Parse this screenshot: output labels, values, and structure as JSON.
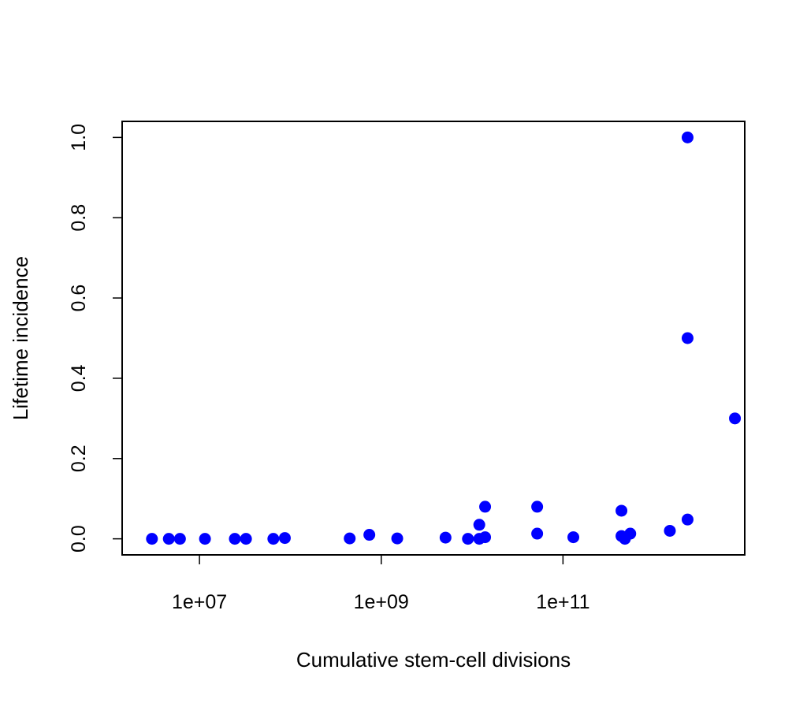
{
  "chart_data": {
    "type": "scatter",
    "title": "",
    "xlabel": "Cumulative stem-cell divisions",
    "ylabel": "Lifetime incidence",
    "x_scale": "log10",
    "xlim": [
      1410000.0,
      10000000000000.0
    ],
    "ylim": [
      -0.04,
      1.04
    ],
    "x_ticks": [
      10000000.0,
      1000000000.0,
      100000000000.0
    ],
    "x_tick_labels": [
      "1e+07",
      "1e+09",
      "1e+11"
    ],
    "y_ticks": [
      0,
      0.2,
      0.4,
      0.6,
      0.8,
      1.0
    ],
    "y_tick_labels": [
      "0.0",
      "0.2",
      "0.4",
      "0.6",
      "0.8",
      "1.0"
    ],
    "grid": false,
    "point_color": "#0000ff",
    "series": [
      {
        "points": [
          {
            "x": 3000000.0,
            "y": 0.0
          },
          {
            "x": 4600000.0,
            "y": 0.0
          },
          {
            "x": 6100000.0,
            "y": 0.0
          },
          {
            "x": 11500000.0,
            "y": 0.0
          },
          {
            "x": 24500000.0,
            "y": 0.0
          },
          {
            "x": 32500000.0,
            "y": 0.0
          },
          {
            "x": 65000000.0,
            "y": 0.0
          },
          {
            "x": 87000000.0,
            "y": 0.002
          },
          {
            "x": 450000000.0,
            "y": 0.001
          },
          {
            "x": 740000000.0,
            "y": 0.01
          },
          {
            "x": 1500000000.0,
            "y": 0.001
          },
          {
            "x": 5100000000.0,
            "y": 0.003
          },
          {
            "x": 9000000000.0,
            "y": 0.0
          },
          {
            "x": 12000000000.0,
            "y": 0.035
          },
          {
            "x": 12000000000.0,
            "y": 0.0
          },
          {
            "x": 13900000000.0,
            "y": 0.08
          },
          {
            "x": 13900000000.0,
            "y": 0.004
          },
          {
            "x": 52000000000.0,
            "y": 0.08
          },
          {
            "x": 52000000000.0,
            "y": 0.013
          },
          {
            "x": 130000000000.0,
            "y": 0.004
          },
          {
            "x": 440000000000.0,
            "y": 0.07
          },
          {
            "x": 440000000000.0,
            "y": 0.007
          },
          {
            "x": 480000000000.0,
            "y": 0.0
          },
          {
            "x": 550000000000.0,
            "y": 0.013
          },
          {
            "x": 1500000000000.0,
            "y": 0.02
          },
          {
            "x": 2350000000000.0,
            "y": 1.0
          },
          {
            "x": 2350000000000.0,
            "y": 0.5
          },
          {
            "x": 2350000000000.0,
            "y": 0.048
          },
          {
            "x": 7800000000000.0,
            "y": 0.3
          }
        ]
      }
    ]
  }
}
